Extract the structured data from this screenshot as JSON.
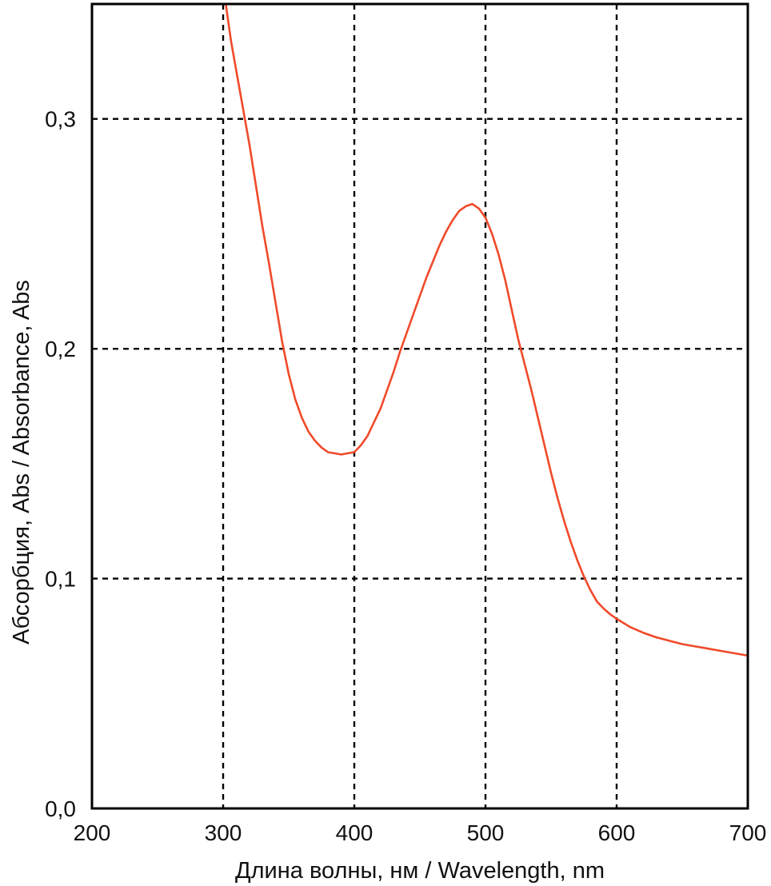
{
  "chart_data": {
    "type": "line",
    "title": "",
    "xlabel": "Длина волны, нм / Wavelength, nm",
    "ylabel": "Абсорбция, Abs / Absorbance, Abs",
    "xlim": [
      200,
      700
    ],
    "ylim": [
      0.0,
      0.35
    ],
    "x_ticks": [
      200,
      300,
      400,
      500,
      600,
      700
    ],
    "x_tick_labels": [
      "200",
      "300",
      "400",
      "500",
      "600",
      "700"
    ],
    "y_ticks": [
      0.0,
      0.1,
      0.2,
      0.3
    ],
    "y_tick_labels": [
      "0,0",
      "0,1",
      "0,2",
      "0,3"
    ],
    "grid": true,
    "legend": "none",
    "colors": {
      "series": "#f04a2a",
      "grid": "#000000",
      "frame": "#000000"
    },
    "series": [
      {
        "x": [
          302,
          306,
          310,
          315,
          320,
          325,
          330,
          335,
          340,
          345,
          350,
          355,
          360,
          365,
          370,
          375,
          380,
          385,
          390,
          395,
          400,
          405,
          410,
          415,
          420,
          425,
          430,
          435,
          440,
          445,
          450,
          455,
          460,
          465,
          470,
          475,
          480,
          485,
          490,
          495,
          500,
          505,
          510,
          515,
          520,
          525,
          530,
          535,
          540,
          545,
          550,
          555,
          560,
          565,
          570,
          575,
          580,
          585,
          590,
          595,
          600,
          610,
          620,
          630,
          640,
          650,
          660,
          670,
          680,
          690,
          700
        ],
        "y": [
          0.35,
          0.334,
          0.321,
          0.305,
          0.289,
          0.271,
          0.253,
          0.237,
          0.22,
          0.203,
          0.189,
          0.178,
          0.17,
          0.164,
          0.16,
          0.157,
          0.155,
          0.1545,
          0.154,
          0.1545,
          0.155,
          0.158,
          0.162,
          0.168,
          0.174,
          0.182,
          0.19,
          0.199,
          0.207,
          0.215,
          0.223,
          0.231,
          0.238,
          0.245,
          0.251,
          0.256,
          0.26,
          0.262,
          0.263,
          0.261,
          0.257,
          0.25,
          0.241,
          0.23,
          0.217,
          0.204,
          0.193,
          0.182,
          0.17,
          0.158,
          0.146,
          0.135,
          0.125,
          0.116,
          0.108,
          0.101,
          0.095,
          0.09,
          0.087,
          0.0845,
          0.0825,
          0.079,
          0.0765,
          0.0745,
          0.073,
          0.0715,
          0.0705,
          0.0695,
          0.0685,
          0.0675,
          0.0665
        ]
      }
    ]
  }
}
